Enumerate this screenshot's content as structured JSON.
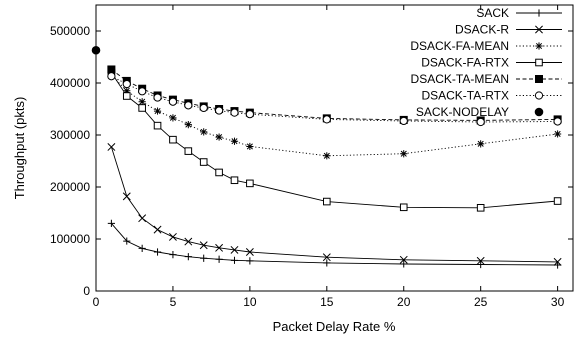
{
  "chart_data": {
    "type": "line",
    "xlabel": "Packet Delay Rate %",
    "ylabel": "Throughput (pkts)",
    "xlim": [
      0,
      31
    ],
    "ylim": [
      0,
      550000
    ],
    "xticks": [
      0,
      5,
      10,
      15,
      20,
      25,
      30
    ],
    "yticks": [
      0,
      100000,
      200000,
      300000,
      400000,
      500000
    ],
    "grid": false,
    "legend_position": "top-right",
    "x": [
      1,
      2,
      3,
      4,
      5,
      6,
      7,
      8,
      9,
      10,
      15,
      20,
      25,
      30
    ],
    "series": [
      {
        "name": "SACK",
        "marker": "plus",
        "line": "solid",
        "values": [
          130000,
          96000,
          82000,
          75000,
          70000,
          66000,
          63000,
          61000,
          59000,
          58000,
          54000,
          52000,
          51000,
          50000
        ]
      },
      {
        "name": "DSACK-R",
        "marker": "cross",
        "line": "solid",
        "values": [
          277000,
          182000,
          140000,
          118000,
          104000,
          95000,
          88000,
          83000,
          79000,
          75000,
          65000,
          60000,
          58000,
          56000
        ]
      },
      {
        "name": "DSACK-FA-MEAN",
        "marker": "asterisk",
        "line": "dotted",
        "values": [
          415000,
          385000,
          364000,
          346000,
          333000,
          320000,
          306000,
          296000,
          288000,
          278000,
          260000,
          264000,
          283000,
          302000
        ]
      },
      {
        "name": "DSACK-FA-RTX",
        "marker": "open-square",
        "line": "solid",
        "values": [
          420000,
          375000,
          352000,
          318000,
          291000,
          269000,
          248000,
          228000,
          213000,
          207000,
          172000,
          161000,
          160000,
          173000
        ]
      },
      {
        "name": "DSACK-TA-MEAN",
        "marker": "filled-square",
        "line": "dashed",
        "values": [
          426000,
          404000,
          389000,
          376000,
          368000,
          361000,
          355000,
          350000,
          346000,
          343000,
          332000,
          329000,
          328000,
          330000
        ]
      },
      {
        "name": "DSACK-TA-RTX",
        "marker": "open-circle",
        "line": "dotted",
        "values": [
          413000,
          398000,
          384000,
          372000,
          364000,
          357000,
          352000,
          347000,
          343000,
          340000,
          330000,
          327000,
          325000,
          326000
        ]
      },
      {
        "name": "SACK-NODELAY",
        "marker": "filled-circle",
        "line": "none",
        "points": [
          {
            "x": 0,
            "y": 463000
          }
        ]
      }
    ]
  }
}
